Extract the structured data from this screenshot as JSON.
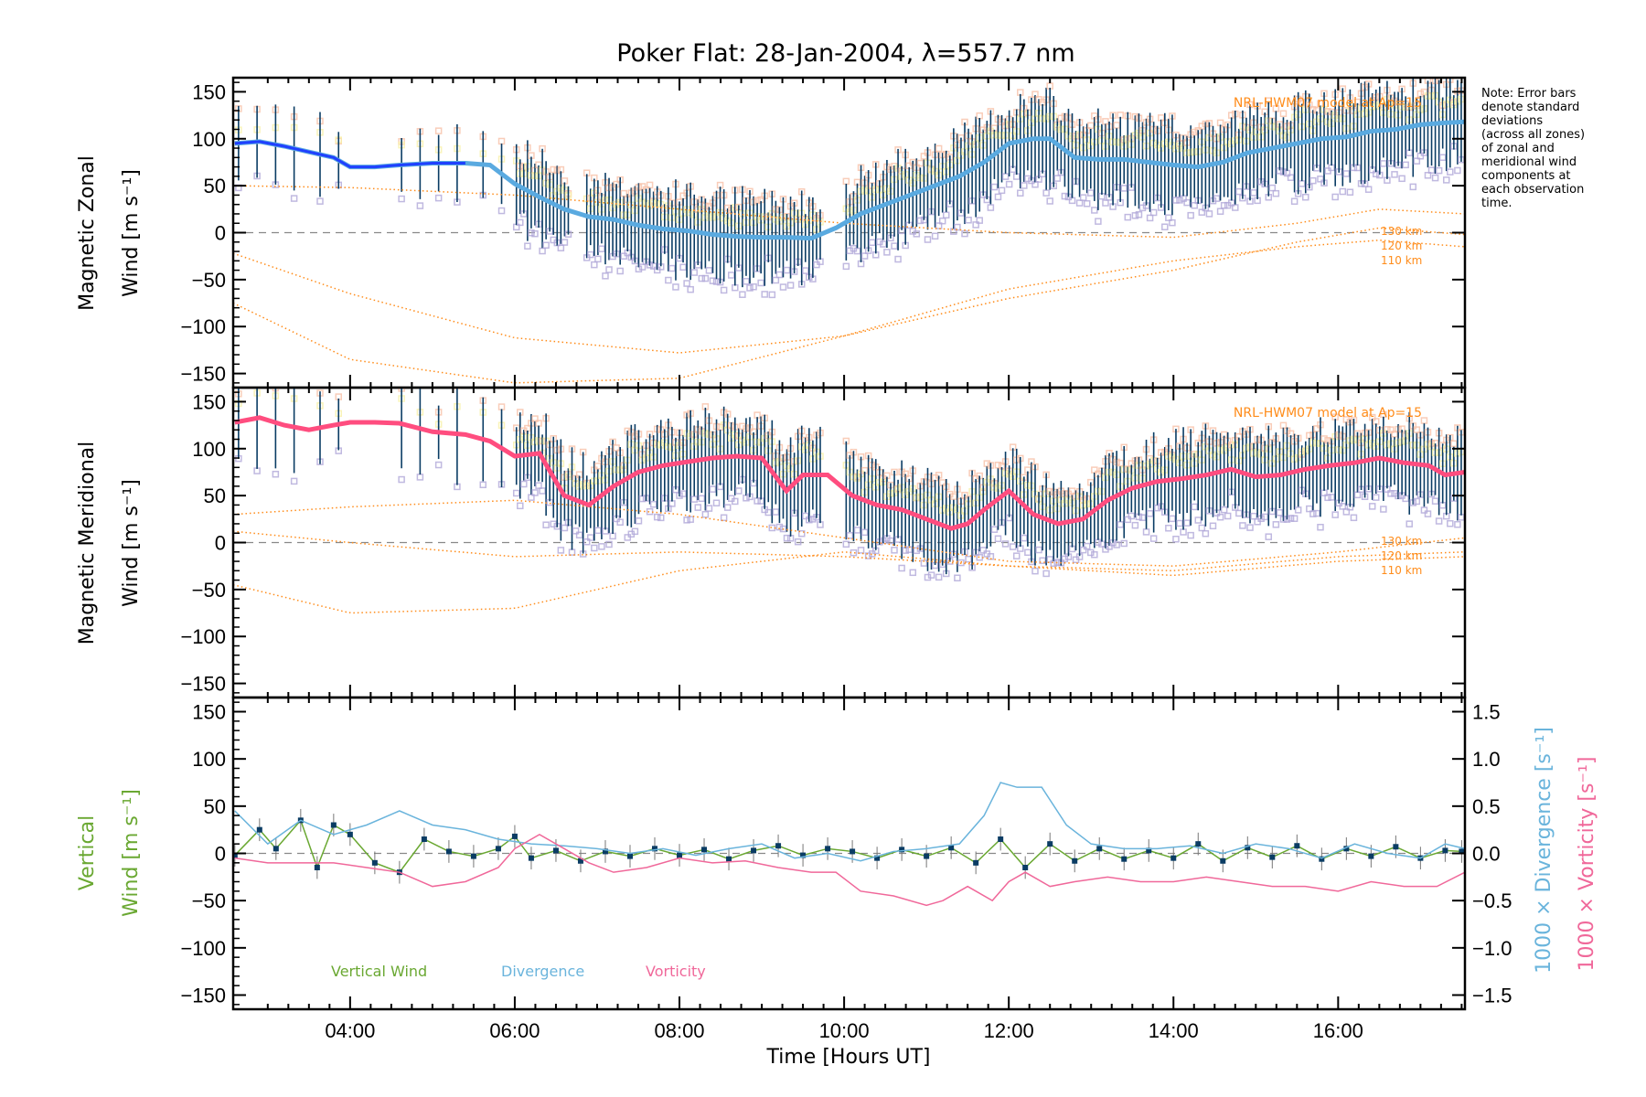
{
  "chart_data": [
    {
      "type": "line",
      "panel": "zonal",
      "title": "Poker Flat: 28-Jan-2004, λ=557.7 nm",
      "ylabel": "Magnetic Zonal",
      "ylabel2": "Wind [m s⁻¹]",
      "ylim": [
        -165,
        165
      ],
      "yticks": [
        -150,
        -100,
        -50,
        0,
        50,
        100,
        150
      ],
      "xlim_hours": [
        2.58,
        17.54
      ],
      "model_label": "NRL-HWM07 model at Ap=15",
      "altitude_labels": [
        "130 km",
        "120 km",
        "110 km"
      ],
      "mean_wind": {
        "x": [
          2.6,
          2.9,
          3.2,
          3.5,
          3.8,
          4.0,
          4.3,
          4.6,
          5.0,
          5.4,
          5.7,
          6.0,
          6.3,
          6.6,
          6.9,
          7.2,
          7.5,
          7.8,
          8.1,
          8.4,
          8.7,
          9.0,
          9.3,
          9.6,
          9.9,
          10.2,
          10.5,
          10.8,
          11.1,
          11.4,
          11.7,
          12.0,
          12.3,
          12.5,
          12.8,
          13.1,
          13.4,
          13.7,
          14.0,
          14.3,
          14.6,
          14.9,
          15.2,
          15.5,
          15.8,
          16.1,
          16.4,
          16.7,
          17.0,
          17.3,
          17.54
        ],
        "y": [
          95,
          97,
          92,
          86,
          80,
          70,
          70,
          72,
          74,
          74,
          72,
          52,
          38,
          25,
          17,
          14,
          8,
          4,
          2,
          -2,
          -4,
          -5,
          -5,
          -6,
          5,
          20,
          30,
          40,
          50,
          60,
          75,
          95,
          100,
          100,
          80,
          78,
          78,
          75,
          72,
          70,
          75,
          85,
          90,
          95,
          100,
          102,
          108,
          110,
          115,
          117,
          118
        ]
      },
      "model_curves": [
        {
          "altitude": "130 km",
          "x": [
            2.58,
            4,
            6,
            8,
            10,
            12,
            14,
            15.5,
            16.5,
            17.54
          ],
          "y": [
            50,
            48,
            40,
            25,
            10,
            0,
            -5,
            10,
            25,
            20
          ]
        },
        {
          "altitude": "120 km",
          "x": [
            2.58,
            4,
            6,
            8,
            10,
            12,
            14,
            15.5,
            16.5,
            17.54
          ],
          "y": [
            -22,
            -65,
            -112,
            -128,
            -110,
            -70,
            -40,
            -10,
            5,
            -2
          ]
        },
        {
          "altitude": "110 km",
          "x": [
            2.58,
            4,
            6,
            8,
            10,
            12,
            14,
            15.5,
            16.5,
            17.54
          ],
          "y": [
            -75,
            -135,
            -160,
            -155,
            -110,
            -60,
            -30,
            -15,
            -8,
            -15
          ]
        }
      ]
    },
    {
      "type": "line",
      "panel": "meridional",
      "ylabel": "Magnetic Meridional",
      "ylabel2": "Wind [m s⁻¹]",
      "ylim": [
        -165,
        165
      ],
      "yticks": [
        -150,
        -100,
        -50,
        0,
        50,
        100,
        150
      ],
      "model_label": "NRL-HWM07 model at Ap=15",
      "altitude_labels": [
        "130 km",
        "120 km",
        "110 km"
      ],
      "mean_wind": {
        "x": [
          2.6,
          2.9,
          3.2,
          3.5,
          3.8,
          4.0,
          4.3,
          4.6,
          5.0,
          5.4,
          5.7,
          6.0,
          6.3,
          6.6,
          6.9,
          7.2,
          7.5,
          7.8,
          8.1,
          8.4,
          8.7,
          9.0,
          9.3,
          9.5,
          9.8,
          10.1,
          10.4,
          10.7,
          11.0,
          11.3,
          11.5,
          11.7,
          12.0,
          12.3,
          12.6,
          12.9,
          13.2,
          13.5,
          13.8,
          14.1,
          14.4,
          14.7,
          15.0,
          15.3,
          15.6,
          15.9,
          16.2,
          16.5,
          16.8,
          17.1,
          17.3,
          17.54
        ],
        "y": [
          128,
          133,
          125,
          120,
          125,
          128,
          128,
          127,
          118,
          115,
          108,
          92,
          95,
          50,
          40,
          60,
          75,
          82,
          86,
          90,
          92,
          90,
          55,
          72,
          72,
          50,
          40,
          35,
          25,
          15,
          20,
          35,
          55,
          30,
          20,
          25,
          45,
          58,
          65,
          68,
          72,
          78,
          70,
          72,
          78,
          82,
          85,
          90,
          85,
          82,
          72,
          75
        ]
      },
      "model_curves": [
        {
          "altitude": "130 km",
          "x": [
            2.58,
            4,
            6,
            8,
            10,
            12,
            14,
            16,
            17.54
          ],
          "y": [
            30,
            38,
            45,
            30,
            5,
            -20,
            -25,
            -10,
            5
          ]
        },
        {
          "altitude": "120 km",
          "x": [
            2.58,
            4,
            6,
            8,
            10,
            12,
            14,
            16,
            17.54
          ],
          "y": [
            12,
            0,
            -15,
            -10,
            -15,
            -25,
            -30,
            -15,
            -10
          ]
        },
        {
          "altitude": "110 km",
          "x": [
            2.58,
            4,
            6,
            8,
            10,
            12,
            14,
            16,
            17.54
          ],
          "y": [
            -45,
            -75,
            -70,
            -30,
            -10,
            -25,
            -35,
            -20,
            -15
          ]
        }
      ]
    },
    {
      "type": "line",
      "panel": "vertical",
      "ylabel": "Vertical",
      "ylabel2": "Wind [m s⁻¹]",
      "ylim": [
        -165,
        165
      ],
      "yticks": [
        -150,
        -100,
        -50,
        0,
        50,
        100,
        150
      ],
      "y2label_divergence": "1000 × Divergence [s⁻¹]",
      "y2label_vorticity": "1000 × Vorticity [s⁻¹]",
      "y2lim": [
        -1.65,
        1.65
      ],
      "y2ticks": [
        "-1.5",
        "-1.0",
        "-0.5",
        "0.0",
        "0.5",
        "1.0",
        "1.5"
      ],
      "xlabel": "Time [Hours UT]",
      "xticks": [
        "04:00",
        "06:00",
        "08:00",
        "10:00",
        "12:00",
        "14:00",
        "16:00"
      ],
      "xtick_hours": [
        4,
        6,
        8,
        10,
        12,
        14,
        16
      ],
      "legend": [
        {
          "name": "Vertical Wind",
          "color": "#6aa832"
        },
        {
          "name": "Divergence",
          "color": "#6ab4dc"
        },
        {
          "name": "Vorticity",
          "color": "#f0689a"
        }
      ],
      "series": [
        {
          "name": "Vertical Wind",
          "x": [
            2.6,
            2.9,
            3.1,
            3.4,
            3.6,
            3.8,
            4.0,
            4.3,
            4.6,
            4.9,
            5.2,
            5.5,
            5.8,
            6.0,
            6.2,
            6.5,
            6.8,
            7.1,
            7.4,
            7.7,
            8.0,
            8.3,
            8.6,
            8.9,
            9.2,
            9.5,
            9.8,
            10.1,
            10.4,
            10.7,
            11.0,
            11.3,
            11.6,
            11.9,
            12.2,
            12.5,
            12.8,
            13.1,
            13.4,
            13.7,
            14.0,
            14.3,
            14.6,
            14.9,
            15.2,
            15.5,
            15.8,
            16.1,
            16.4,
            16.7,
            17.0,
            17.3,
            17.5
          ],
          "y": [
            -2,
            25,
            5,
            35,
            -15,
            30,
            20,
            -10,
            -20,
            15,
            2,
            -3,
            5,
            18,
            -5,
            3,
            -8,
            2,
            -3,
            5,
            -2,
            4,
            -6,
            3,
            8,
            -2,
            5,
            2,
            -5,
            4,
            -3,
            6,
            -10,
            15,
            -15,
            10,
            -8,
            5,
            -6,
            3,
            -5,
            10,
            -8,
            6,
            -4,
            8,
            -6,
            5,
            -3,
            7,
            -5,
            3,
            2
          ]
        },
        {
          "name": "Divergence",
          "x": [
            2.6,
            3.0,
            3.4,
            3.8,
            4.2,
            4.6,
            5.0,
            5.4,
            5.8,
            6.2,
            6.6,
            7.0,
            7.4,
            7.8,
            8.2,
            8.6,
            9.0,
            9.4,
            9.8,
            10.2,
            10.6,
            11.0,
            11.4,
            11.7,
            11.9,
            12.1,
            12.4,
            12.7,
            13.0,
            13.4,
            13.8,
            14.2,
            14.6,
            15.0,
            15.4,
            15.8,
            16.2,
            16.6,
            17.0,
            17.3,
            17.54
          ],
          "y": [
            0.45,
            0.1,
            0.35,
            0.2,
            0.3,
            0.45,
            0.3,
            0.25,
            0.15,
            0.1,
            0.08,
            0.05,
            0.0,
            0.05,
            -0.02,
            0.05,
            0.1,
            -0.05,
            0.0,
            -0.08,
            0.02,
            0.05,
            0.1,
            0.4,
            0.75,
            0.7,
            0.7,
            0.3,
            0.1,
            0.05,
            0.05,
            0.08,
            0.0,
            0.1,
            0.05,
            -0.05,
            0.1,
            0.0,
            -0.05,
            0.1,
            0.05
          ]
        },
        {
          "name": "Vorticity",
          "x": [
            2.6,
            3.0,
            3.4,
            3.8,
            4.2,
            4.6,
            5.0,
            5.4,
            5.8,
            6.0,
            6.3,
            6.6,
            6.9,
            7.2,
            7.6,
            8.0,
            8.4,
            8.8,
            9.2,
            9.6,
            9.9,
            10.2,
            10.6,
            11.0,
            11.2,
            11.5,
            11.8,
            12.0,
            12.2,
            12.5,
            12.8,
            13.2,
            13.6,
            14.0,
            14.4,
            14.8,
            15.2,
            15.6,
            16.0,
            16.4,
            16.8,
            17.2,
            17.54
          ],
          "y": [
            -0.05,
            -0.1,
            -0.1,
            -0.1,
            -0.15,
            -0.2,
            -0.35,
            -0.3,
            -0.15,
            0.05,
            0.2,
            0.05,
            -0.1,
            -0.2,
            -0.15,
            -0.05,
            -0.1,
            -0.08,
            -0.15,
            -0.2,
            -0.2,
            -0.4,
            -0.45,
            -0.55,
            -0.5,
            -0.35,
            -0.5,
            -0.3,
            -0.2,
            -0.35,
            -0.3,
            -0.25,
            -0.3,
            -0.3,
            -0.25,
            -0.3,
            -0.35,
            -0.35,
            -0.4,
            -0.3,
            -0.35,
            -0.35,
            -0.2
          ]
        }
      ]
    }
  ],
  "note_lines": [
    "Note: Error bars",
    "denote standard",
    "deviations",
    "(across all zones)",
    "of zonal and",
    "meridional wind",
    "components at",
    "each observation",
    "time."
  ],
  "colors": {
    "zonal_mean_early": "#2040ff",
    "zonal_mean": "#5aaae0",
    "meridional_mean": "#ff4d7f",
    "error_bar": "#0a3c64",
    "model_curve": "#ff8c1a",
    "zone_scatter_lavender": "#b0a8d8",
    "zone_scatter_peach": "#f8c0a8",
    "zone_scatter_yellow": "#f8f0a8"
  }
}
